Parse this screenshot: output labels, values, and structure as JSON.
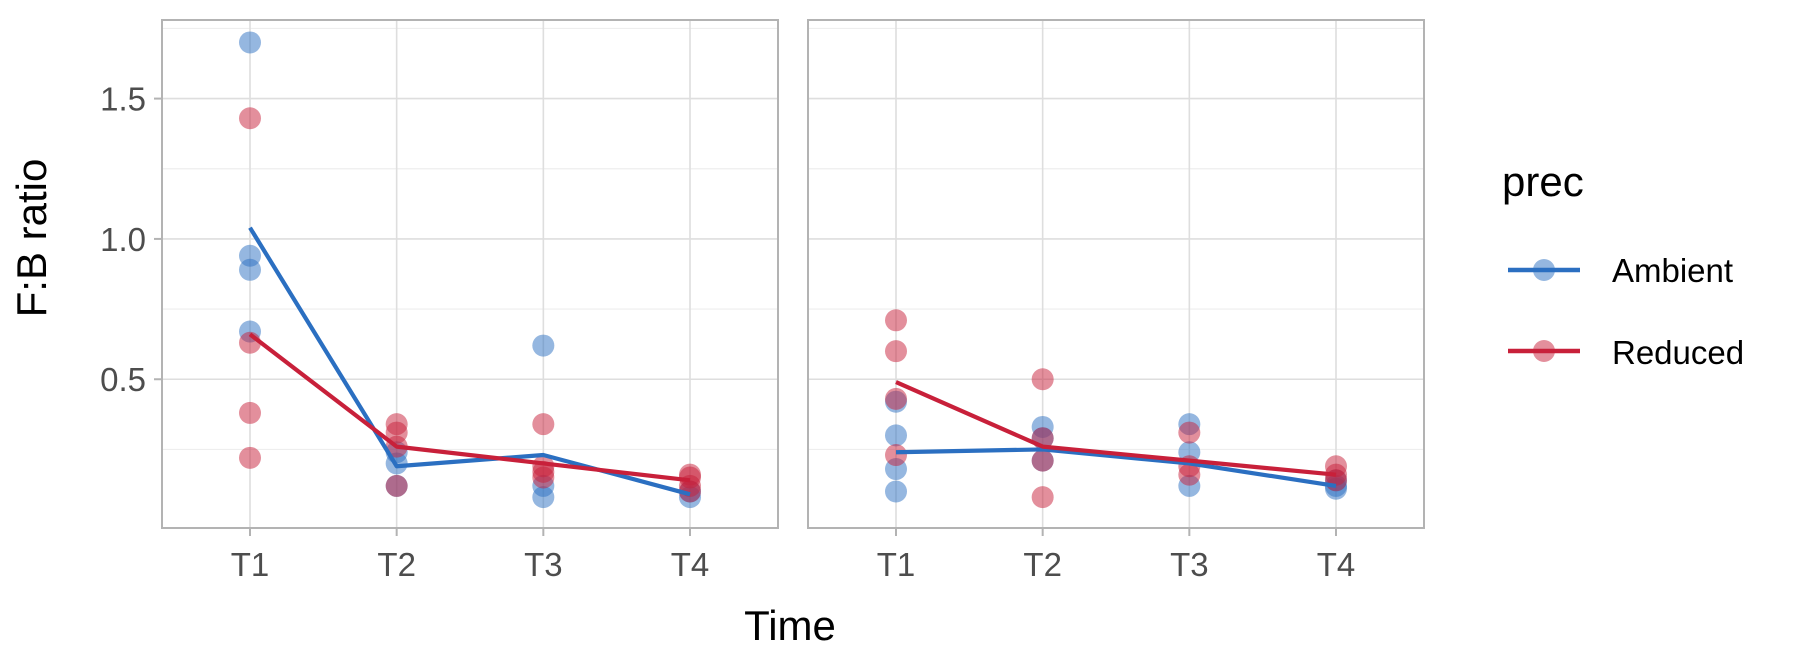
{
  "chart_data": {
    "type": "scatter",
    "xlabel": "Time",
    "ylabel": "F:B ratio",
    "categories": [
      "T1",
      "T2",
      "T3",
      "T4"
    ],
    "y_ticks": [
      0.5,
      1.0,
      1.5
    ],
    "y_tick_labels": [
      "0.5",
      "1.0",
      "1.5"
    ],
    "ylim": [
      -0.03,
      1.78
    ],
    "grid": true,
    "legend": {
      "title": "prec",
      "placement": "right",
      "entries": [
        "Ambient",
        "Reduced"
      ]
    },
    "colors": {
      "Ambient": "#2b6fc1",
      "Reduced": "#c8203a"
    },
    "panels": [
      {
        "series": [
          {
            "name": "Ambient",
            "points": [
              [
                "T1",
                1.7
              ],
              [
                "T1",
                0.94
              ],
              [
                "T1",
                0.89
              ],
              [
                "T1",
                0.67
              ],
              [
                "T2",
                0.24
              ],
              [
                "T2",
                0.2
              ],
              [
                "T2",
                0.12
              ],
              [
                "T3",
                0.62
              ],
              [
                "T3",
                0.12
              ],
              [
                "T3",
                0.08
              ],
              [
                "T4",
                0.1
              ],
              [
                "T4",
                0.08
              ]
            ],
            "line": [
              1.04,
              0.19,
              0.23,
              0.09
            ]
          },
          {
            "name": "Reduced",
            "points": [
              [
                "T1",
                1.43
              ],
              [
                "T1",
                0.63
              ],
              [
                "T1",
                0.38
              ],
              [
                "T1",
                0.22
              ],
              [
                "T2",
                0.34
              ],
              [
                "T2",
                0.31
              ],
              [
                "T2",
                0.26
              ],
              [
                "T2",
                0.12
              ],
              [
                "T3",
                0.34
              ],
              [
                "T3",
                0.19
              ],
              [
                "T3",
                0.17
              ],
              [
                "T3",
                0.15
              ],
              [
                "T4",
                0.16
              ],
              [
                "T4",
                0.15
              ],
              [
                "T4",
                0.12
              ],
              [
                "T4",
                0.1
              ]
            ],
            "line": [
              0.66,
              0.26,
              0.2,
              0.14
            ]
          }
        ]
      },
      {
        "series": [
          {
            "name": "Ambient",
            "points": [
              [
                "T1",
                0.42
              ],
              [
                "T1",
                0.3
              ],
              [
                "T1",
                0.18
              ],
              [
                "T1",
                0.1
              ],
              [
                "T2",
                0.33
              ],
              [
                "T2",
                0.29
              ],
              [
                "T2",
                0.21
              ],
              [
                "T3",
                0.34
              ],
              [
                "T3",
                0.24
              ],
              [
                "T3",
                0.12
              ],
              [
                "T4",
                0.14
              ],
              [
                "T4",
                0.12
              ],
              [
                "T4",
                0.11
              ]
            ],
            "line": [
              0.24,
              0.25,
              0.2,
              0.12
            ]
          },
          {
            "name": "Reduced",
            "points": [
              [
                "T1",
                0.71
              ],
              [
                "T1",
                0.6
              ],
              [
                "T1",
                0.43
              ],
              [
                "T1",
                0.23
              ],
              [
                "T2",
                0.5
              ],
              [
                "T2",
                0.29
              ],
              [
                "T2",
                0.21
              ],
              [
                "T2",
                0.08
              ],
              [
                "T3",
                0.31
              ],
              [
                "T3",
                0.19
              ],
              [
                "T3",
                0.16
              ],
              [
                "T4",
                0.19
              ],
              [
                "T4",
                0.16
              ],
              [
                "T4",
                0.14
              ]
            ],
            "line": [
              0.49,
              0.26,
              0.21,
              0.16
            ]
          }
        ]
      }
    ]
  }
}
